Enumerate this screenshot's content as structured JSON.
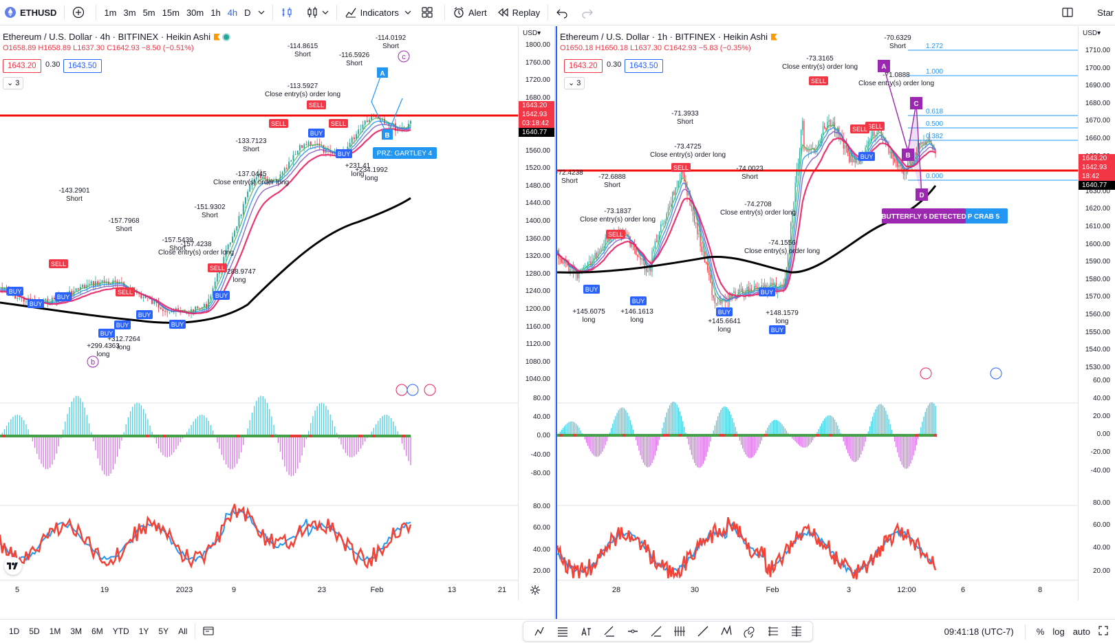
{
  "toolbar": {
    "symbol": "ETHUSD",
    "timeframes": [
      "1m",
      "3m",
      "5m",
      "15m",
      "30m",
      "1h",
      "4h",
      "D"
    ],
    "active_timeframe": "4h",
    "indicators_label": "Indicators",
    "alert_label": "Alert",
    "replay_label": "Replay",
    "right_label": "Star"
  },
  "left_chart": {
    "title": "Ethereum / U.S. Dollar · 4h · BITFINEX · Heikin Ashi",
    "ohlc": "O1658.89 H1658.89 L1637.30 C1642.93 −8.50 (−0.51%)",
    "bid": "1643.20",
    "spread": "0.30",
    "ask": "1643.50",
    "collapse": "3",
    "axis_currency": "USD",
    "price_ticks": [
      "1800.00",
      "1760.00",
      "1720.00",
      "1680.00",
      "1560.00",
      "1520.00",
      "1480.00",
      "1440.00",
      "1400.00",
      "1360.00",
      "1320.00",
      "1280.00",
      "1240.00",
      "1200.00",
      "1160.00",
      "1120.00",
      "1080.00",
      "1040.00"
    ],
    "tags": {
      "bid": "1643.20",
      "last": "1642.93",
      "countdown": "03:18:42",
      "support": "1640.77"
    },
    "osc1_ticks": [
      "80.00",
      "40.00",
      "0.00",
      "-40.00",
      "-80.00"
    ],
    "osc2_ticks": [
      "80.00",
      "60.00",
      "40.00",
      "20.00"
    ],
    "time_ticks": [
      "5",
      "19",
      "2023",
      "9",
      "23",
      "Feb",
      "13",
      "21"
    ],
    "harmonic_label": "PRZ: GARTLEY 4",
    "pattern_points": [
      "A",
      "B",
      "b",
      "c"
    ],
    "annotations": [
      {
        "text": "-114.0192",
        "sub": "Short"
      },
      {
        "text": "-114.8615",
        "sub": "Short"
      },
      {
        "text": "-116.5926",
        "sub": "Short"
      },
      {
        "text": "-113.5927",
        "sub": "Close entry(s) order long"
      },
      {
        "text": "-133.7123",
        "sub": "Short"
      },
      {
        "text": "-137.0445",
        "sub": "Close entry(s) order long"
      },
      {
        "text": "-143.2901",
        "sub": "Short"
      },
      {
        "text": "-151.9302",
        "sub": "Short"
      },
      {
        "text": "-157.7968",
        "sub": "Short"
      },
      {
        "text": "-157.5439",
        "sub": "Short"
      },
      {
        "text": "-157.4238",
        "sub": "Close entry(s) order long"
      },
      {
        "text": "+288.9747",
        "sub": "long"
      },
      {
        "text": "+299.4363",
        "sub": "long"
      },
      {
        "text": "+312.7264",
        "sub": "long"
      },
      {
        "text": "+231.41",
        "sub": "long"
      },
      {
        "text": "+234.1992",
        "sub": "long"
      }
    ]
  },
  "right_chart": {
    "title": "Ethereum / U.S. Dollar · 1h · BITFINEX · Heikin Ashi",
    "ohlc": "O1650.18 H1650.18 L1637.30 C1642.93 −5.83 (−0.35%)",
    "bid": "1643.20",
    "spread": "0.30",
    "ask": "1643.50",
    "collapse": "3",
    "axis_currency": "USD",
    "price_ticks": [
      "1710.00",
      "1700.00",
      "1690.00",
      "1680.00",
      "1670.00",
      "1660.00",
      "1650.00",
      "1640.00",
      "1630.00",
      "1620.00",
      "1610.00",
      "1600.00",
      "1590.00",
      "1580.00",
      "1570.00",
      "1560.00",
      "1550.00",
      "1540.00",
      "1530.00"
    ],
    "tags": {
      "bid": "1643.20",
      "last": "1642.93",
      "countdown": "18:42",
      "support": "1640.77"
    },
    "fib_levels": [
      "1.272",
      "1.000",
      "0.618",
      "0.500",
      "0.382",
      "0.000"
    ],
    "osc1_ticks": [
      "60.00",
      "40.00",
      "20.00",
      "0.00",
      "-20.00",
      "-40.00"
    ],
    "osc2_ticks": [
      "80.00",
      "60.00",
      "40.00",
      "20.00"
    ],
    "time_ticks": [
      "28",
      "30",
      "Feb",
      "3",
      "12:00",
      "6",
      "8"
    ],
    "butterfly_label": "BUTTERFLY 5 DETECTED",
    "crab_label": "P CRAB 5",
    "pattern_points": [
      "A",
      "B",
      "C",
      "D"
    ],
    "annotations": [
      {
        "text": "-70.6329",
        "sub": "Short"
      },
      {
        "text": "-71.0888",
        "sub": "Close entry(s) order long"
      },
      {
        "text": "-73.3165",
        "sub": "Close entry(s) order long"
      },
      {
        "text": "-71.3933",
        "sub": "Short"
      },
      {
        "text": "-73.4725",
        "sub": "Close entry(s) order long"
      },
      {
        "text": "-72.4238",
        "sub": "Short"
      },
      {
        "text": "-72.6888",
        "sub": "Short"
      },
      {
        "text": "-73.1837",
        "sub": "Close entry(s) order long"
      },
      {
        "text": "-74.0023",
        "sub": "Short"
      },
      {
        "text": "-74.2708",
        "sub": "Close entry(s) order long"
      },
      {
        "text": "-74.1556",
        "sub": "Close entry(s) order long"
      },
      {
        "text": "+145.6075",
        "sub": "long"
      },
      {
        "text": "+146.1613",
        "sub": "long"
      },
      {
        "text": "+145.6641",
        "sub": "long"
      },
      {
        "text": "+148.1579",
        "sub": "long"
      }
    ]
  },
  "signals": {
    "buy": "BUY",
    "sell": "SELL"
  },
  "bottom": {
    "ranges": [
      "1D",
      "5D",
      "1M",
      "3M",
      "6M",
      "YTD",
      "1Y",
      "5Y",
      "All"
    ],
    "clock": "09:41:18 (UTC-7)",
    "percent": "%",
    "log": "log",
    "auto": "auto"
  },
  "colors": {
    "accent": "#2962ff",
    "bull": "#26a69a",
    "bear": "#f23645",
    "support_line": "#f20d0d",
    "ma_long": "#000000",
    "harmonic": "#9c27b0"
  },
  "icons": [
    "add-symbol-icon",
    "bar-style-icon",
    "indicators-icon",
    "layout-icon",
    "alert-icon",
    "replay-icon",
    "undo-icon",
    "redo-icon",
    "sidebar-toggle-icon",
    "settings-icon",
    "calendar-icon",
    "tradingview-logo-icon"
  ]
}
